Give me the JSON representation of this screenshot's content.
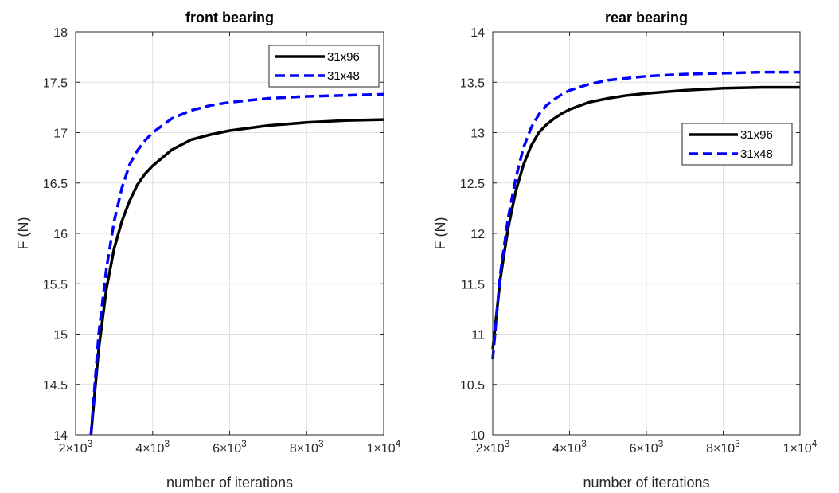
{
  "chart_data": [
    {
      "type": "line",
      "title": "front bearing",
      "xlabel": "number of iterations",
      "ylabel": "F (N)",
      "xlim": [
        2000,
        10000
      ],
      "ylim": [
        14,
        18
      ],
      "grid": true,
      "legend_position": "top-right",
      "xticks": [
        {
          "value": 2000,
          "mantissa": "2",
          "base": "×10",
          "exp": "3"
        },
        {
          "value": 4000,
          "mantissa": "4",
          "base": "×10",
          "exp": "3"
        },
        {
          "value": 6000,
          "mantissa": "6",
          "base": "×10",
          "exp": "3"
        },
        {
          "value": 8000,
          "mantissa": "8",
          "base": "×10",
          "exp": "3"
        },
        {
          "value": 10000,
          "mantissa": "1",
          "base": "×10",
          "exp": "4"
        }
      ],
      "yticks": [
        {
          "value": 14,
          "label": "14"
        },
        {
          "value": 14.5,
          "label": "14.5"
        },
        {
          "value": 15,
          "label": "15"
        },
        {
          "value": 15.5,
          "label": "15.5"
        },
        {
          "value": 16,
          "label": "16"
        },
        {
          "value": 16.5,
          "label": "16.5"
        },
        {
          "value": 17,
          "label": "17"
        },
        {
          "value": 17.5,
          "label": "17.5"
        },
        {
          "value": 18,
          "label": "18"
        }
      ],
      "series": [
        {
          "name": "31x96",
          "color": "#000000",
          "style": "solid",
          "x": [
            2400,
            2600,
            2800,
            3000,
            3200,
            3400,
            3600,
            3800,
            4000,
            4500,
            5000,
            5500,
            6000,
            7000,
            8000,
            9000,
            10000
          ],
          "y": [
            14.0,
            14.85,
            15.45,
            15.85,
            16.12,
            16.32,
            16.48,
            16.59,
            16.67,
            16.83,
            16.93,
            16.98,
            17.02,
            17.07,
            17.1,
            17.12,
            17.13
          ]
        },
        {
          "name": "31x48",
          "color": "#0000ff",
          "style": "dashed",
          "x": [
            2400,
            2600,
            2800,
            3000,
            3200,
            3400,
            3600,
            3800,
            4000,
            4500,
            5000,
            5500,
            6000,
            7000,
            8000,
            9000,
            10000
          ],
          "y": [
            14.0,
            15.0,
            15.65,
            16.12,
            16.45,
            16.68,
            16.82,
            16.92,
            17.0,
            17.14,
            17.22,
            17.27,
            17.3,
            17.34,
            17.36,
            17.37,
            17.38
          ]
        }
      ]
    },
    {
      "type": "line",
      "title": "rear bearing",
      "xlabel": "number of iterations",
      "ylabel": "F (N)",
      "xlim": [
        2000,
        10000
      ],
      "ylim": [
        10,
        14
      ],
      "grid": true,
      "legend_position": "right",
      "xticks": [
        {
          "value": 2000,
          "mantissa": "2",
          "base": "×10",
          "exp": "3"
        },
        {
          "value": 4000,
          "mantissa": "4",
          "base": "×10",
          "exp": "3"
        },
        {
          "value": 6000,
          "mantissa": "6",
          "base": "×10",
          "exp": "3"
        },
        {
          "value": 8000,
          "mantissa": "8",
          "base": "×10",
          "exp": "3"
        },
        {
          "value": 10000,
          "mantissa": "1",
          "base": "×10",
          "exp": "4"
        }
      ],
      "yticks": [
        {
          "value": 10,
          "label": "10"
        },
        {
          "value": 10.5,
          "label": "10.5"
        },
        {
          "value": 11,
          "label": "11"
        },
        {
          "value": 11.5,
          "label": "11.5"
        },
        {
          "value": 12,
          "label": "12"
        },
        {
          "value": 12.5,
          "label": "12.5"
        },
        {
          "value": 13,
          "label": "13"
        },
        {
          "value": 13.5,
          "label": "13.5"
        },
        {
          "value": 14,
          "label": "14"
        }
      ],
      "series": [
        {
          "name": "31x96",
          "color": "#000000",
          "style": "solid",
          "x": [
            2000,
            2200,
            2400,
            2600,
            2800,
            3000,
            3200,
            3400,
            3600,
            3800,
            4000,
            4500,
            5000,
            5500,
            6000,
            7000,
            8000,
            9000,
            10000
          ],
          "y": [
            10.85,
            11.55,
            12.05,
            12.42,
            12.68,
            12.87,
            13.0,
            13.08,
            13.14,
            13.19,
            13.23,
            13.3,
            13.34,
            13.37,
            13.39,
            13.42,
            13.44,
            13.45,
            13.45
          ]
        },
        {
          "name": "31x48",
          "color": "#0000ff",
          "style": "dashed",
          "x": [
            2000,
            2200,
            2400,
            2600,
            2800,
            3000,
            3200,
            3400,
            3600,
            3800,
            4000,
            4500,
            5000,
            5500,
            6000,
            7000,
            8000,
            9000,
            10000
          ],
          "y": [
            10.75,
            11.6,
            12.15,
            12.55,
            12.85,
            13.05,
            13.18,
            13.27,
            13.33,
            13.38,
            13.42,
            13.48,
            13.52,
            13.54,
            13.56,
            13.58,
            13.59,
            13.6,
            13.6
          ]
        }
      ]
    }
  ]
}
